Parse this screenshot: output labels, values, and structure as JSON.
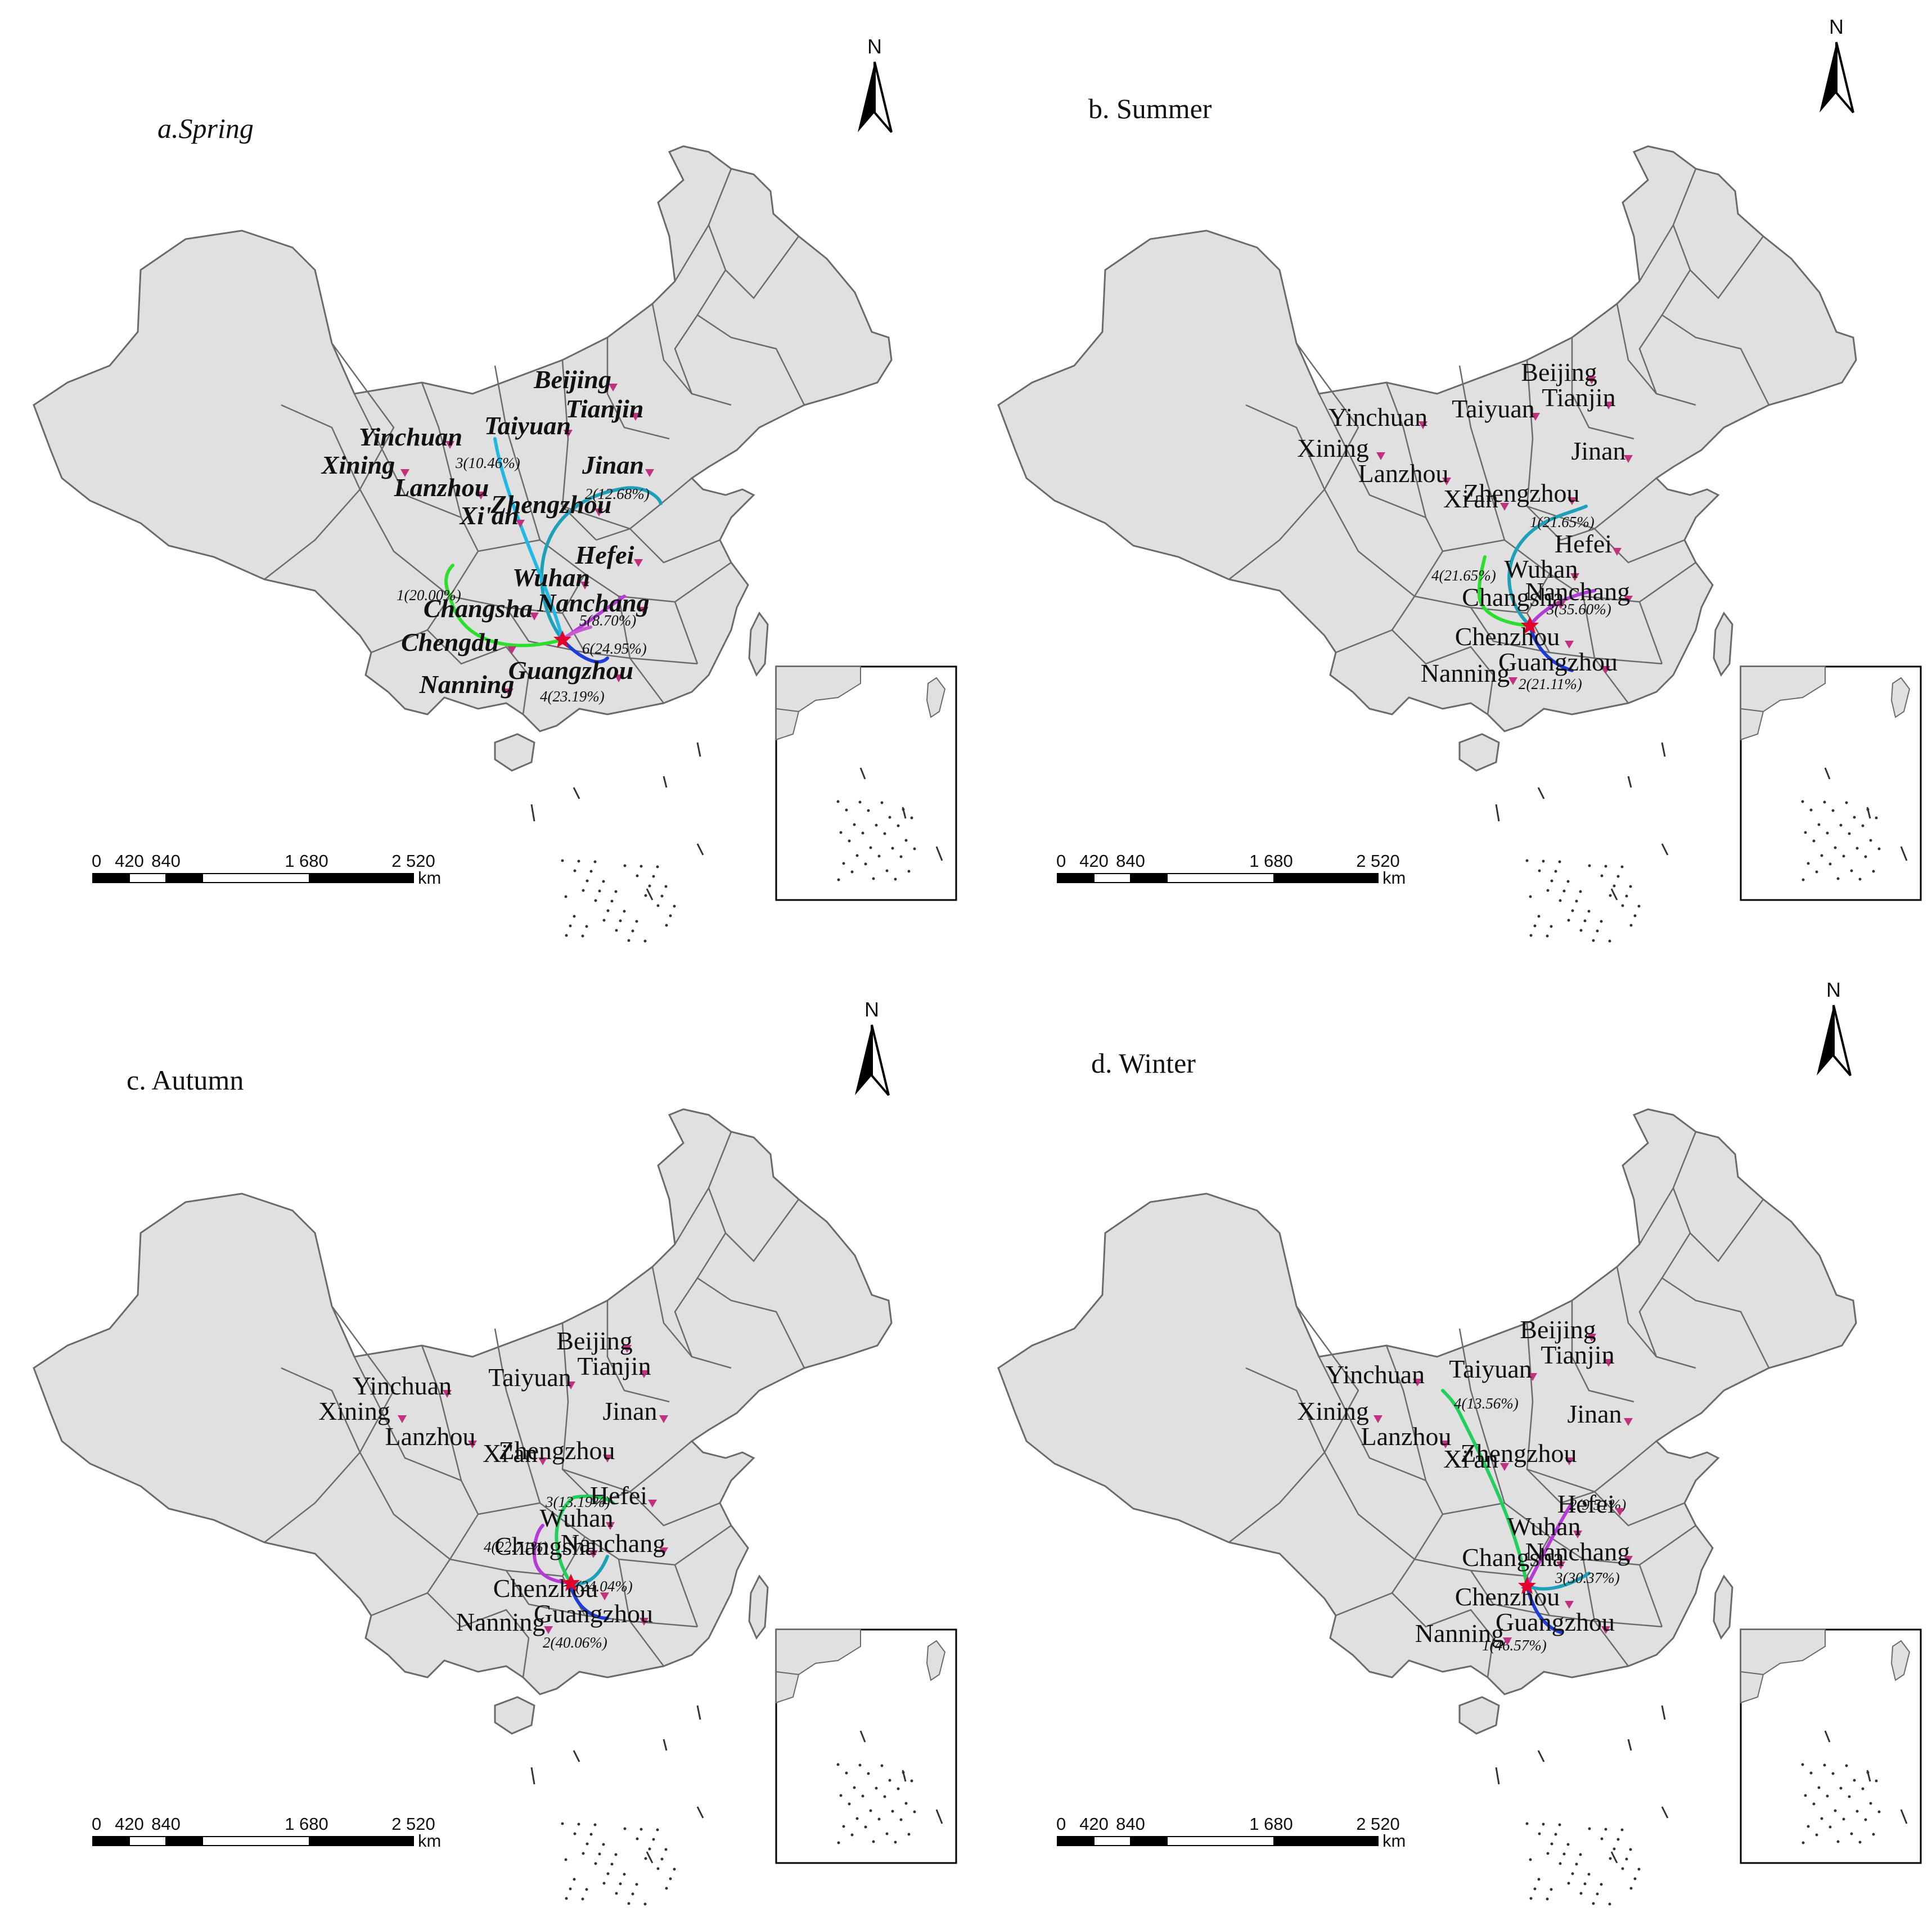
{
  "north_label": "N",
  "scale": {
    "ticks": [
      "0",
      "420",
      "840",
      "1 680",
      "2 520"
    ],
    "unit": "km"
  },
  "colors": {
    "land": "#e0e0e0",
    "border": "#6a6a6a",
    "marker": "#c0317f",
    "source": "#e3002d",
    "traj1": "#21b9e4",
    "traj2": "#1e3dd6",
    "traj3": "#b53bd6",
    "traj4": "#2ede2e",
    "traj5": "#a547d8",
    "traj6": "#c85bd0",
    "teal": "#1ea0b8",
    "green": "#22cf5a"
  },
  "panels": [
    {
      "id": "spring",
      "title": "a.Spring",
      "cities": [
        {
          "name": "Beijing"
        },
        {
          "name": "Tianjin"
        },
        {
          "name": "Yinchuan"
        },
        {
          "name": "Taiyuan"
        },
        {
          "name": "Xining"
        },
        {
          "name": "Jinan"
        },
        {
          "name": "Lanzhou"
        },
        {
          "name": "Xi'an"
        },
        {
          "name": "Zhengzhou"
        },
        {
          "name": "Hefei"
        },
        {
          "name": "Wuhan"
        },
        {
          "name": "Changsha"
        },
        {
          "name": "Nanchang"
        },
        {
          "name": "Chengdu"
        },
        {
          "name": "Nanning"
        },
        {
          "name": "Guangzhou"
        }
      ],
      "trajectories": [
        {
          "label": "1(20.00%)"
        },
        {
          "label": "2(12.68%)"
        },
        {
          "label": "3(10.46%)"
        },
        {
          "label": "4(23.19%)"
        },
        {
          "label": "5(8.70%)"
        },
        {
          "label": "6(24.95%)"
        }
      ]
    },
    {
      "id": "summer",
      "title": "b. Summer",
      "cities": [
        {
          "name": "Beijing"
        },
        {
          "name": "Tianjin"
        },
        {
          "name": "Yinchuan"
        },
        {
          "name": "Taiyuan"
        },
        {
          "name": "Xining"
        },
        {
          "name": "Jinan"
        },
        {
          "name": "Lanzhou"
        },
        {
          "name": "Xi'an"
        },
        {
          "name": "Zhengzhou"
        },
        {
          "name": "Hefei"
        },
        {
          "name": "Wuhan"
        },
        {
          "name": "Changsha"
        },
        {
          "name": "Nanchang"
        },
        {
          "name": "Chenzhou"
        },
        {
          "name": "Nanning"
        },
        {
          "name": "Guangzhou"
        }
      ],
      "trajectories": [
        {
          "label": "1(21.65%)"
        },
        {
          "label": "2(21.11%)"
        },
        {
          "label": "3(35.60%)"
        },
        {
          "label": "4(21.65%)"
        }
      ]
    },
    {
      "id": "autumn",
      "title": "c. Autumn",
      "cities": [
        {
          "name": "Beijing"
        },
        {
          "name": "Tianjin"
        },
        {
          "name": "Yinchuan"
        },
        {
          "name": "Taiyuan"
        },
        {
          "name": "Xining"
        },
        {
          "name": "Jinan"
        },
        {
          "name": "Lanzhou"
        },
        {
          "name": "Xi'an"
        },
        {
          "name": "Zhengzhou"
        },
        {
          "name": "Hefei"
        },
        {
          "name": "Wuhan"
        },
        {
          "name": "Changsha"
        },
        {
          "name": "Nanchang"
        },
        {
          "name": "Chenzhou"
        },
        {
          "name": "Nanning"
        },
        {
          "name": "Guangzhou"
        }
      ],
      "trajectories": [
        {
          "label": "1(24.04%)"
        },
        {
          "label": "2(40.06%)"
        },
        {
          "label": "3(13.19%)"
        },
        {
          "label": "4(22.71%)"
        }
      ]
    },
    {
      "id": "winter",
      "title": "d. Winter",
      "cities": [
        {
          "name": "Beijing"
        },
        {
          "name": "Tianjin"
        },
        {
          "name": "Yinchuan"
        },
        {
          "name": "Taiyuan"
        },
        {
          "name": "Xining"
        },
        {
          "name": "Jinan"
        },
        {
          "name": "Lanzhou"
        },
        {
          "name": "Xi'an"
        },
        {
          "name": "Zhengzhou"
        },
        {
          "name": "Hefei"
        },
        {
          "name": "Wuhan"
        },
        {
          "name": "Changsha"
        },
        {
          "name": "Nanchang"
        },
        {
          "name": "Chenzhou"
        },
        {
          "name": "Nanning"
        },
        {
          "name": "Guangzhou"
        }
      ],
      "trajectories": [
        {
          "label": "1(46.57%)"
        },
        {
          "label": "2(9.51%)"
        },
        {
          "label": "3(30.37%)"
        },
        {
          "label": "4(13.56%)"
        }
      ]
    }
  ]
}
